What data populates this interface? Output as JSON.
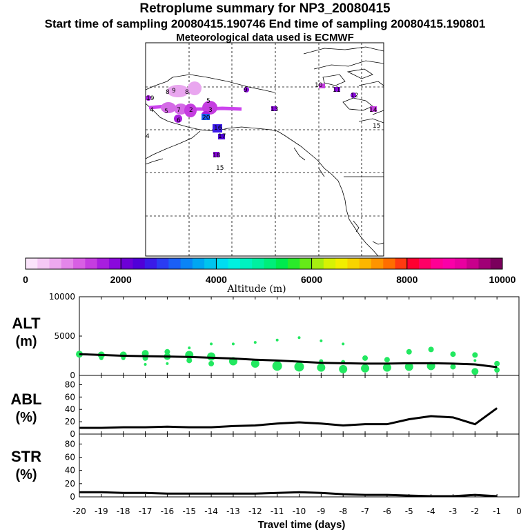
{
  "header": {
    "title": "Retroplume summary for NP3_20080415",
    "sampling_line": "Start time of sampling 20080415.190746     End time of sampling 20080415.190801",
    "met_line": "Meteorological data used is ECMWF"
  },
  "colors": {
    "plume_dot": "#22e860",
    "line": "#000000",
    "map_plume": "#cc44ee"
  },
  "map": {
    "labels": [
      "9",
      "8",
      "8",
      "5",
      "3",
      "4",
      "5",
      "7",
      "2",
      "20",
      "6",
      "9",
      "10",
      "11",
      "12",
      "13",
      "14",
      "15",
      "16",
      "17",
      "18",
      "19",
      "4",
      "15"
    ]
  },
  "colorbar": {
    "colors": [
      "#fbe4fb",
      "#f5c8f5",
      "#eda9ef",
      "#e486ea",
      "#d85fe4",
      "#c53de0",
      "#a81edf",
      "#8a08dd",
      "#6d00d6",
      "#5000d8",
      "#3a1be8",
      "#2a3cf2",
      "#1a5ff6",
      "#0a84f6",
      "#00a6f2",
      "#00c4ee",
      "#00ddf0",
      "#00f0e0",
      "#00f2c0",
      "#00f0a0",
      "#00ee7a",
      "#00ea4e",
      "#2aea2a",
      "#66ea18",
      "#a6ee10",
      "#d6f204",
      "#f2ee00",
      "#f8d400",
      "#fcb600",
      "#fe9400",
      "#ff6e00",
      "#ff3a10",
      "#ff0030",
      "#ff0066",
      "#ff0094",
      "#fa00a8",
      "#e800a0",
      "#c8008c",
      "#a00076",
      "#7a005c"
    ],
    "ticks": [
      "0",
      "2000",
      "4000",
      "6000",
      "8000",
      "10000"
    ],
    "label": "Altitude (m)"
  },
  "panels": {
    "alt": {
      "label_top": "ALT",
      "label_bottom": "(m)",
      "ticks": [
        "10000",
        "5000",
        "0"
      ]
    },
    "abl": {
      "label_top": "ABL",
      "label_bottom": "(%)",
      "ticks": [
        "80",
        "60",
        "40",
        "20",
        "0"
      ]
    },
    "str": {
      "label_top": "STR",
      "label_bottom": "(%)",
      "ticks": [
        "80",
        "60",
        "40",
        "20",
        "0"
      ]
    }
  },
  "xaxis": {
    "ticks": [
      "-20",
      "-19",
      "-18",
      "-17",
      "-16",
      "-15",
      "-14",
      "-13",
      "-12",
      "-11",
      "-10",
      "-9",
      "-8",
      "-7",
      "-6",
      "-5",
      "-4",
      "-3",
      "-2",
      "-1",
      "0"
    ],
    "label": "Travel time (days)"
  },
  "chart_data": [
    {
      "type": "scatter",
      "title": "ALT (m)",
      "xlabel": "Travel time (days)",
      "ylabel": "ALT (m)",
      "xlim": [
        -20,
        0
      ],
      "ylim": [
        0,
        10000
      ],
      "series": [
        {
          "name": "mean altitude",
          "type": "line",
          "x": [
            -20,
            -19,
            -18,
            -17,
            -16,
            -15,
            -14,
            -13,
            -12,
            -11,
            -10,
            -9,
            -8,
            -7,
            -6,
            -5,
            -4,
            -3,
            -2,
            -1
          ],
          "y": [
            2700,
            2600,
            2500,
            2450,
            2400,
            2350,
            2250,
            2150,
            2000,
            1900,
            1750,
            1600,
            1550,
            1500,
            1500,
            1550,
            1550,
            1500,
            1400,
            1050
          ]
        },
        {
          "name": "plume clusters",
          "type": "scatter",
          "points": [
            {
              "x": -20,
              "y": 2700,
              "r": 5
            },
            {
              "x": -19,
              "y": 2600,
              "r": 5
            },
            {
              "x": -19,
              "y": 2200,
              "r": 3
            },
            {
              "x": -18,
              "y": 2600,
              "r": 5
            },
            {
              "x": -18,
              "y": 2200,
              "r": 3
            },
            {
              "x": -17,
              "y": 2800,
              "r": 5
            },
            {
              "x": -17,
              "y": 2200,
              "r": 4
            },
            {
              "x": -17,
              "y": 1400,
              "r": 2
            },
            {
              "x": -16,
              "y": 3000,
              "r": 4
            },
            {
              "x": -16,
              "y": 2400,
              "r": 5
            },
            {
              "x": -16,
              "y": 1500,
              "r": 2
            },
            {
              "x": -15,
              "y": 3500,
              "r": 2
            },
            {
              "x": -15,
              "y": 2600,
              "r": 6
            },
            {
              "x": -15,
              "y": 1900,
              "r": 4
            },
            {
              "x": -14,
              "y": 4000,
              "r": 2
            },
            {
              "x": -14,
              "y": 2400,
              "r": 6
            },
            {
              "x": -14,
              "y": 1500,
              "r": 4
            },
            {
              "x": -13,
              "y": 4000,
              "r": 2
            },
            {
              "x": -13,
              "y": 1800,
              "r": 6
            },
            {
              "x": -12,
              "y": 4200,
              "r": 2
            },
            {
              "x": -12,
              "y": 1500,
              "r": 6
            },
            {
              "x": -11,
              "y": 4500,
              "r": 2
            },
            {
              "x": -11,
              "y": 1200,
              "r": 7
            },
            {
              "x": -10,
              "y": 4800,
              "r": 2
            },
            {
              "x": -10,
              "y": 1100,
              "r": 7
            },
            {
              "x": -9,
              "y": 4400,
              "r": 2
            },
            {
              "x": -9,
              "y": 1000,
              "r": 6
            },
            {
              "x": -9,
              "y": 1800,
              "r": 3
            },
            {
              "x": -8,
              "y": 4000,
              "r": 2
            },
            {
              "x": -8,
              "y": 800,
              "r": 6
            },
            {
              "x": -8,
              "y": 1700,
              "r": 3
            },
            {
              "x": -7,
              "y": 2200,
              "r": 4
            },
            {
              "x": -7,
              "y": 900,
              "r": 6
            },
            {
              "x": -6,
              "y": 2000,
              "r": 4
            },
            {
              "x": -6,
              "y": 1000,
              "r": 6
            },
            {
              "x": -5,
              "y": 3000,
              "r": 4
            },
            {
              "x": -5,
              "y": 1100,
              "r": 6
            },
            {
              "x": -4,
              "y": 3300,
              "r": 4
            },
            {
              "x": -4,
              "y": 1200,
              "r": 6
            },
            {
              "x": -3,
              "y": 2700,
              "r": 4
            },
            {
              "x": -3,
              "y": 1100,
              "r": 4
            },
            {
              "x": -2,
              "y": 2600,
              "r": 4
            },
            {
              "x": -2,
              "y": 500,
              "r": 5
            },
            {
              "x": -2,
              "y": 1900,
              "r": 2
            },
            {
              "x": -1,
              "y": 1500,
              "r": 4
            },
            {
              "x": -1,
              "y": 700,
              "r": 4
            }
          ]
        }
      ]
    },
    {
      "type": "line",
      "title": "ABL (%)",
      "xlabel": "Travel time (days)",
      "ylabel": "ABL (%)",
      "xlim": [
        -20,
        0
      ],
      "ylim": [
        0,
        95
      ],
      "x": [
        -20,
        -19,
        -18,
        -17,
        -16,
        -15,
        -14,
        -13,
        -12,
        -11,
        -10,
        -9,
        -8,
        -7,
        -6,
        -5,
        -4,
        -3,
        -2,
        -1
      ],
      "values": [
        10,
        10,
        11,
        11,
        12,
        11,
        11,
        13,
        14,
        17,
        19,
        17,
        14,
        16,
        16,
        24,
        29,
        27,
        16,
        42
      ]
    },
    {
      "type": "line",
      "title": "STR (%)",
      "xlabel": "Travel time (days)",
      "ylabel": "STR (%)",
      "xlim": [
        -20,
        0
      ],
      "ylim": [
        0,
        95
      ],
      "x": [
        -20,
        -19,
        -18,
        -17,
        -16,
        -15,
        -14,
        -13,
        -12,
        -11,
        -10,
        -9,
        -8,
        -7,
        -6,
        -5,
        -4,
        -3,
        -2,
        -1
      ],
      "values": [
        7,
        7,
        6,
        6,
        5,
        5,
        5,
        5,
        5,
        6,
        7,
        6,
        4,
        3,
        3,
        2,
        1,
        1,
        3,
        1
      ]
    }
  ]
}
